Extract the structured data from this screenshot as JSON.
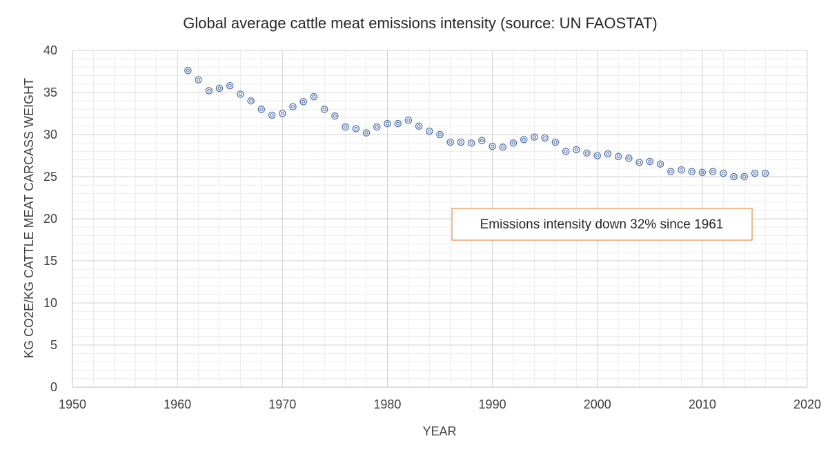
{
  "chart_data": {
    "type": "scatter",
    "title": "Global average cattle meat emissions intensity (source: UN FAOSTAT)",
    "xlabel": "YEAR",
    "ylabel": "KG CO2E/KG CATTLE MEAT CARCASS WEIGHT",
    "xlim": [
      1950,
      2020
    ],
    "ylim": [
      0,
      40
    ],
    "x_ticks": [
      1950,
      1960,
      1970,
      1980,
      1990,
      2000,
      2010,
      2020
    ],
    "y_ticks": [
      0,
      5,
      10,
      15,
      20,
      25,
      30,
      35,
      40
    ],
    "x_minor_step": 2,
    "y_minor_step": 1,
    "grid": true,
    "series": [
      {
        "name": "Emissions intensity",
        "color": "#4e6fae",
        "x": [
          1961,
          1962,
          1963,
          1964,
          1965,
          1966,
          1967,
          1968,
          1969,
          1970,
          1971,
          1972,
          1973,
          1974,
          1975,
          1976,
          1977,
          1978,
          1979,
          1980,
          1981,
          1982,
          1983,
          1984,
          1985,
          1986,
          1987,
          1988,
          1989,
          1990,
          1991,
          1992,
          1993,
          1994,
          1995,
          1996,
          1997,
          1998,
          1999,
          2000,
          2001,
          2002,
          2003,
          2004,
          2005,
          2006,
          2007,
          2008,
          2009,
          2010,
          2011,
          2012,
          2013,
          2014,
          2015,
          2016
        ],
        "y": [
          37.6,
          36.5,
          35.2,
          35.5,
          35.8,
          34.8,
          34.0,
          33.0,
          32.3,
          32.5,
          33.3,
          33.9,
          34.5,
          33.0,
          32.2,
          30.9,
          30.7,
          30.2,
          30.9,
          31.3,
          31.3,
          31.7,
          31.0,
          30.4,
          30.0,
          29.1,
          29.1,
          29.0,
          29.3,
          28.6,
          28.5,
          29.0,
          29.4,
          29.7,
          29.6,
          29.1,
          28.0,
          28.2,
          27.8,
          27.5,
          27.7,
          27.4,
          27.2,
          26.7,
          26.8,
          26.5,
          25.6,
          25.8,
          25.6,
          25.5,
          25.6,
          25.4,
          25.0,
          25.0,
          25.4,
          25.4
        ]
      }
    ],
    "annotations": [
      {
        "text": "Emissions intensity down 32% since 1961",
        "border_color": "#e88d45"
      }
    ]
  }
}
